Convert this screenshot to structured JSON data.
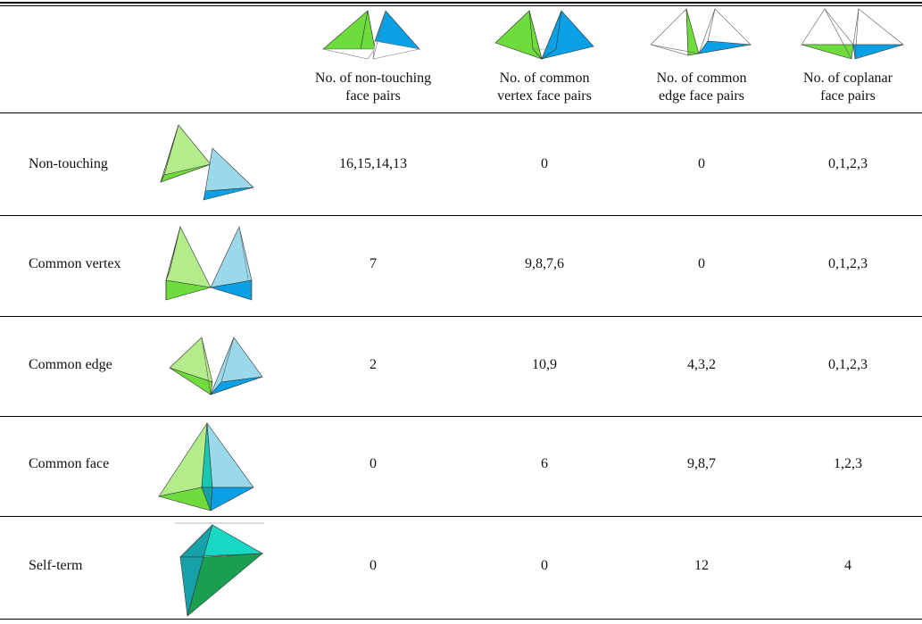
{
  "columns": [
    {
      "header_line1": "No. of non-touching",
      "header_line2": "face pairs",
      "icon": "two-tetrahedra-non-touching-faces-icon"
    },
    {
      "header_line1": "No. of common",
      "header_line2": "vertex face pairs",
      "icon": "two-tetrahedra-common-vertex-faces-icon"
    },
    {
      "header_line1": "No. of common",
      "header_line2": "edge face pairs",
      "icon": "two-tetrahedra-common-edge-faces-icon"
    },
    {
      "header_line1": "No. of coplanar",
      "header_line2": "face pairs",
      "icon": "two-tetrahedra-coplanar-faces-icon"
    }
  ],
  "rows": [
    {
      "label": "Non-touching",
      "values": [
        "16,15,14,13",
        "0",
        "0",
        "0,1,2,3"
      ],
      "icon": "non-touching-tetrahedra-icon"
    },
    {
      "label": "Common vertex",
      "values": [
        "7",
        "9,8,7,6",
        "0",
        "0,1,2,3"
      ],
      "icon": "common-vertex-tetrahedra-icon"
    },
    {
      "label": "Common edge",
      "values": [
        "2",
        "10,9",
        "4,3,2",
        "0,1,2,3"
      ],
      "icon": "common-edge-tetrahedra-icon"
    },
    {
      "label": "Common face",
      "values": [
        "0",
        "6",
        "9,8,7",
        "1,2,3"
      ],
      "icon": "common-face-tetrahedra-icon"
    },
    {
      "label": "Self-term",
      "values": [
        "0",
        "0",
        "12",
        "4"
      ],
      "icon": "self-term-tetrahedron-icon"
    }
  ],
  "colors": {
    "green_light": "#b4ec8c",
    "green": "#6edc3c",
    "blue_light": "#9ad8ea",
    "blue": "#0aa0e6",
    "teal_light": "#18d8c4",
    "teal": "#18a0a8",
    "teal_dark": "#18a050"
  }
}
